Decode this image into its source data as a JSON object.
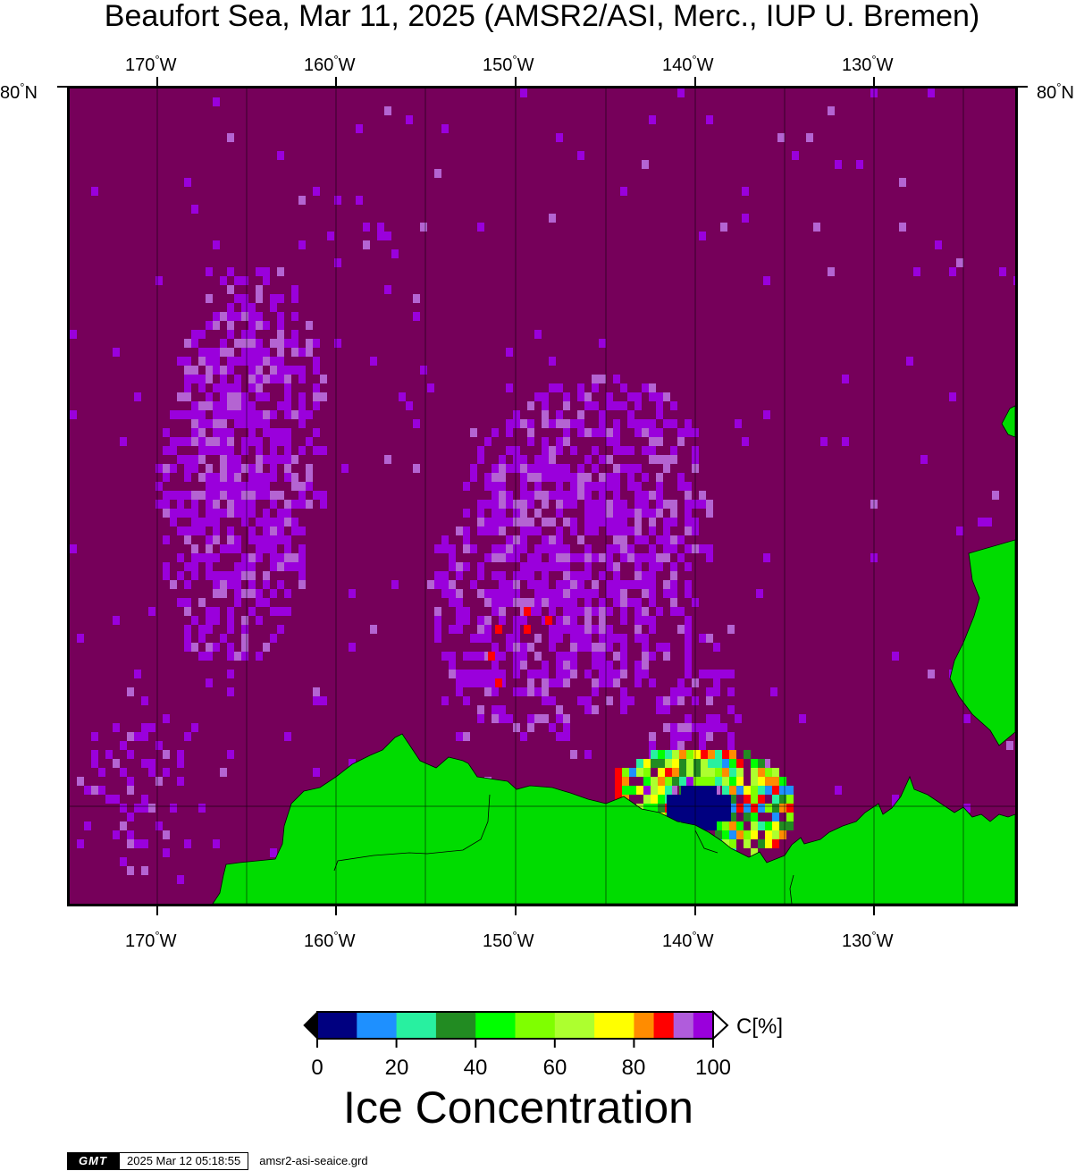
{
  "title": "Beaufort Sea, Mar 11, 2025 (AMSR2/ASI, Merc., IUP U. Bremen)",
  "map": {
    "lon_ticks": [
      "170",
      "160",
      "150",
      "140",
      "130"
    ],
    "lon_suffix": "W",
    "lat_ticks": [
      "80"
    ],
    "lat_suffix": "N",
    "degree_symbol": "°",
    "ocean_color": "#76005a",
    "land_color": "#00dc00",
    "ice_color": "#9a00dc",
    "ice_light_color": "#b464d2"
  },
  "colorbar": {
    "tick_labels": [
      "0",
      "20",
      "40",
      "60",
      "80",
      "100"
    ],
    "unit": "C[%]",
    "title": "Ice Concentration",
    "colors": [
      "#000080",
      "#1e90ff",
      "#28f0a0",
      "#228b22",
      "#00ff00",
      "#7fff00",
      "#adff2f",
      "#ffff00",
      "#ff8c00",
      "#ff0000",
      "#b05cdc",
      "#9a00dc"
    ]
  },
  "footer": {
    "logo": "GMT",
    "timestamp": "2025 Mar 12 05:18:55",
    "filename": "amsr2-asi-seaice.grd"
  }
}
